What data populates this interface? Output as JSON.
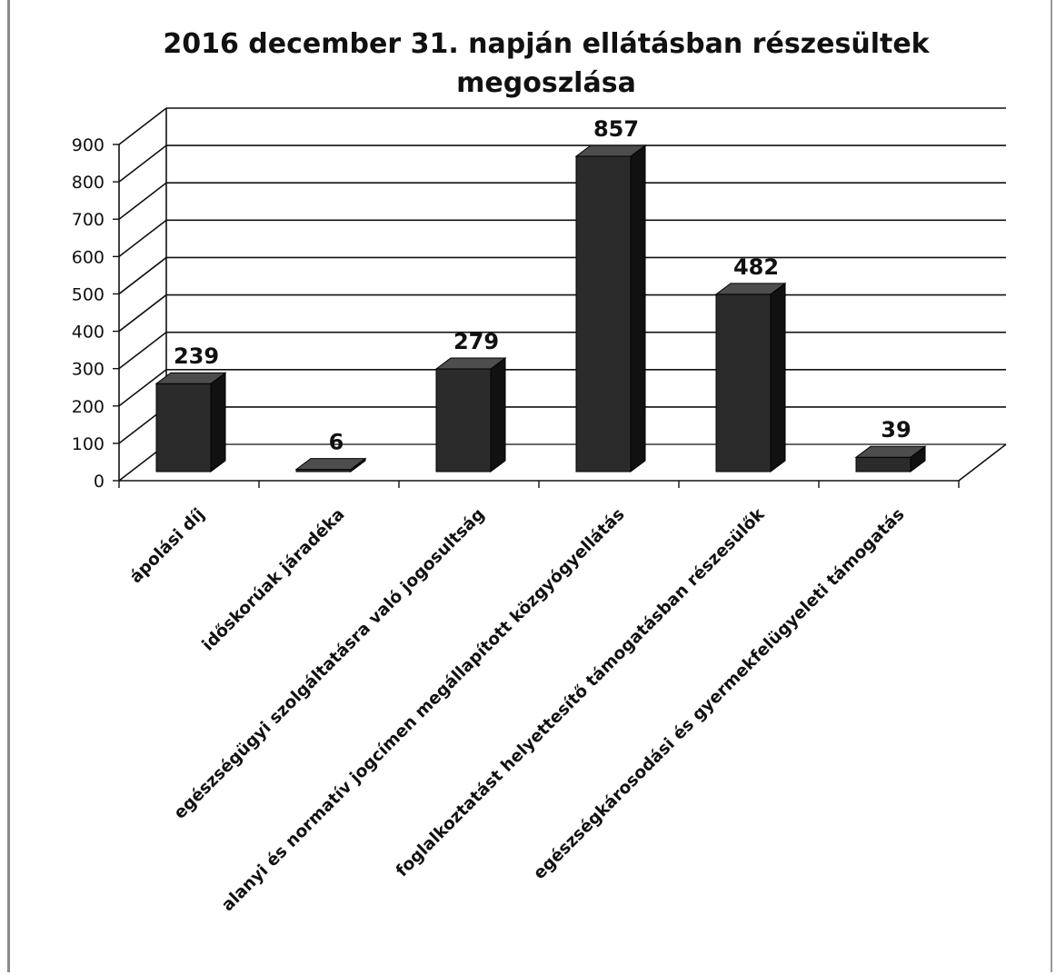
{
  "chart_data": {
    "type": "bar",
    "title": "2016 december 31. napján ellátásban részesültek megoszlása",
    "title_lines": [
      "2016 december 31. napján ellátásban részesültek",
      "megoszlása"
    ],
    "categories": [
      "ápolási díj",
      "időskorúak járadéka",
      "egészségügyi szolgáltatásra való jogosultság",
      "alanyi és normatív jogcímen megállapított közgyógyellátás",
      "foglalkoztatást helyettesítő támogatásban részesülők",
      "egészségkárosodási és gyermekfelügyeleti támogatás"
    ],
    "values": [
      239,
      6,
      279,
      857,
      482,
      39
    ],
    "data_labels": [
      "239",
      "6",
      "279",
      "857",
      "482",
      "39"
    ],
    "ylim": [
      0,
      900
    ],
    "yticks": [
      0,
      100,
      200,
      300,
      400,
      500,
      600,
      700,
      800,
      900
    ],
    "ytick_labels": [
      "0",
      "100",
      "200",
      "300",
      "400",
      "500",
      "600",
      "700",
      "800",
      "900"
    ],
    "xlabel": "",
    "ylabel": "",
    "grid": true,
    "style": "3d-column",
    "legend": "none",
    "colors": {
      "bar_front": "#2b2b2b",
      "bar_side": "#111111",
      "bar_top": "#4d4d4d",
      "grid": "#111111",
      "text": "#111111"
    }
  }
}
